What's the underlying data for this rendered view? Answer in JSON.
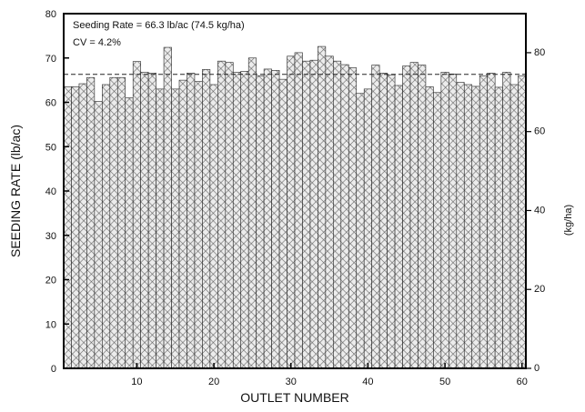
{
  "chart_data": {
    "type": "bar",
    "xlabel": "OUTLET NUMBER",
    "ylabel": "SEEDING RATE (lb/ac)",
    "y2label": "(kg/ha)",
    "annotations": [
      "Seeding Rate = 66.3 lb/ac (74.5 kg/ha)",
      "CV = 4.2%"
    ],
    "mean_line": 66.3,
    "xlim": [
      0.5,
      60.5
    ],
    "ylim": [
      0,
      80
    ],
    "x_ticks": [
      10,
      20,
      30,
      40,
      50,
      60
    ],
    "y_ticks": [
      0,
      10,
      20,
      30,
      40,
      50,
      60,
      70,
      80
    ],
    "y2_ticks": [
      0,
      20,
      40,
      60,
      80
    ],
    "y2_per_y": 1.1237,
    "grid": false,
    "bar_pattern": "crosshatch",
    "x": [
      1,
      2,
      3,
      4,
      5,
      6,
      7,
      8,
      9,
      10,
      11,
      12,
      13,
      14,
      15,
      16,
      17,
      18,
      19,
      20,
      21,
      22,
      23,
      24,
      25,
      26,
      27,
      28,
      29,
      30,
      31,
      32,
      33,
      34,
      35,
      36,
      37,
      38,
      39,
      40,
      41,
      42,
      43,
      44,
      45,
      46,
      47,
      48,
      49,
      50,
      51,
      52,
      53,
      54,
      55,
      56,
      57,
      58,
      59,
      60
    ],
    "values": [
      63.5,
      63.5,
      64.2,
      65.6,
      60.2,
      64.0,
      65.6,
      65.6,
      61.0,
      69.2,
      66.8,
      66.6,
      63.0,
      72.4,
      63.0,
      65.0,
      66.6,
      64.7,
      67.4,
      64.0,
      69.3,
      69.0,
      66.8,
      67.0,
      70.0,
      66.0,
      67.5,
      67.2,
      65.2,
      70.4,
      71.2,
      69.3,
      69.5,
      72.6,
      70.4,
      69.3,
      68.5,
      67.8,
      62.0,
      63.0,
      68.4,
      66.6,
      66.2,
      63.8,
      68.2,
      69.0,
      68.4,
      63.5,
      62.2,
      66.8,
      66.4,
      64.5,
      64.0,
      63.6,
      66.0,
      66.6,
      63.4,
      66.8,
      64.0,
      66.0
    ]
  },
  "labels": {
    "xlabel": "OUTLET NUMBER",
    "ylabel": "SEEDING RATE (lb/ac)",
    "y2label": "(kg/ha)",
    "annotation1": "Seeding Rate = 66.3 lb/ac (74.5 kg/ha)",
    "annotation2": "CV = 4.2%"
  }
}
